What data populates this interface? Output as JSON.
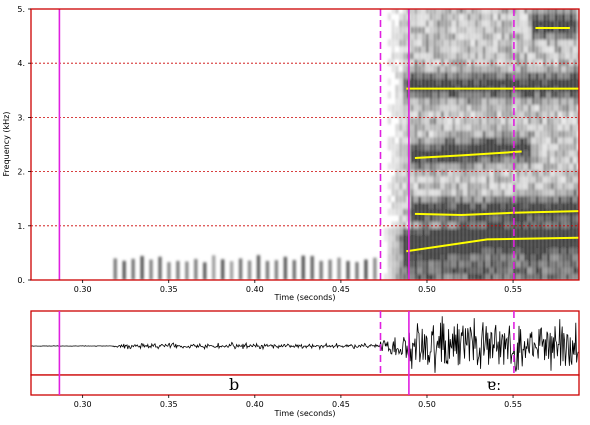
{
  "chart_data": [
    {
      "type": "spectrogram",
      "xlabel": "Time (seconds)",
      "ylabel": "Frequency (kHz)",
      "xlim": [
        0.27,
        0.5883
      ],
      "ylim": [
        0,
        5
      ],
      "x_ticks": [
        "0.30",
        "0.35",
        "0.40",
        "0.45",
        "0.50",
        "0.55"
      ],
      "y_ticks": [
        "0.",
        "1.",
        "2.",
        "3.",
        "4.",
        "5."
      ],
      "grid": "horizontal dotted red lines at 1, 2, 3, 4 kHz",
      "voicing_bar": {
        "start": 0.318,
        "end": 0.47,
        "freq_top_khz": 0.4
      },
      "burst_onset": 0.473,
      "formants": [
        {
          "name": "F1",
          "points": [
            [
              0.488,
              0.53
            ],
            [
              0.535,
              0.75
            ],
            [
              0.588,
              0.78
            ]
          ]
        },
        {
          "name": "F2",
          "points": [
            [
              0.493,
              1.22
            ],
            [
              0.52,
              1.2
            ],
            [
              0.55,
              1.24
            ],
            [
              0.588,
              1.27
            ]
          ]
        },
        {
          "name": "F3",
          "points": [
            [
              0.493,
              2.25
            ],
            [
              0.52,
              2.3
            ],
            [
              0.555,
              2.37
            ]
          ]
        },
        {
          "name": "F4",
          "points": [
            [
              0.488,
              3.53
            ],
            [
              0.588,
              3.53
            ]
          ]
        },
        {
          "name": "F5",
          "points": [
            [
              0.563,
              4.65
            ],
            [
              0.583,
              4.65
            ]
          ]
        }
      ],
      "markers": [
        {
          "time": 0.2865,
          "style": "solid"
        },
        {
          "time": 0.473,
          "style": "dashed"
        },
        {
          "time": 0.4895,
          "style": "solid"
        },
        {
          "time": 0.5505,
          "style": "dashed"
        }
      ]
    },
    {
      "type": "waveform",
      "xlabel": "Time (seconds)",
      "xlim": [
        0.27,
        0.5883
      ],
      "x_ticks": [
        "0.30",
        "0.35",
        "0.40",
        "0.45",
        "0.50",
        "0.55"
      ],
      "segments": [
        {
          "label": "b",
          "start": 0.2865,
          "end": 0.4895
        },
        {
          "label": "ɐː",
          "start": 0.4895,
          "end": 0.5883
        }
      ]
    }
  ],
  "colors": {
    "frame": "#cc0000",
    "grid": "#cc0000",
    "marker": "#e020e0",
    "formant": "#ffff00",
    "waveform": "#000000"
  }
}
